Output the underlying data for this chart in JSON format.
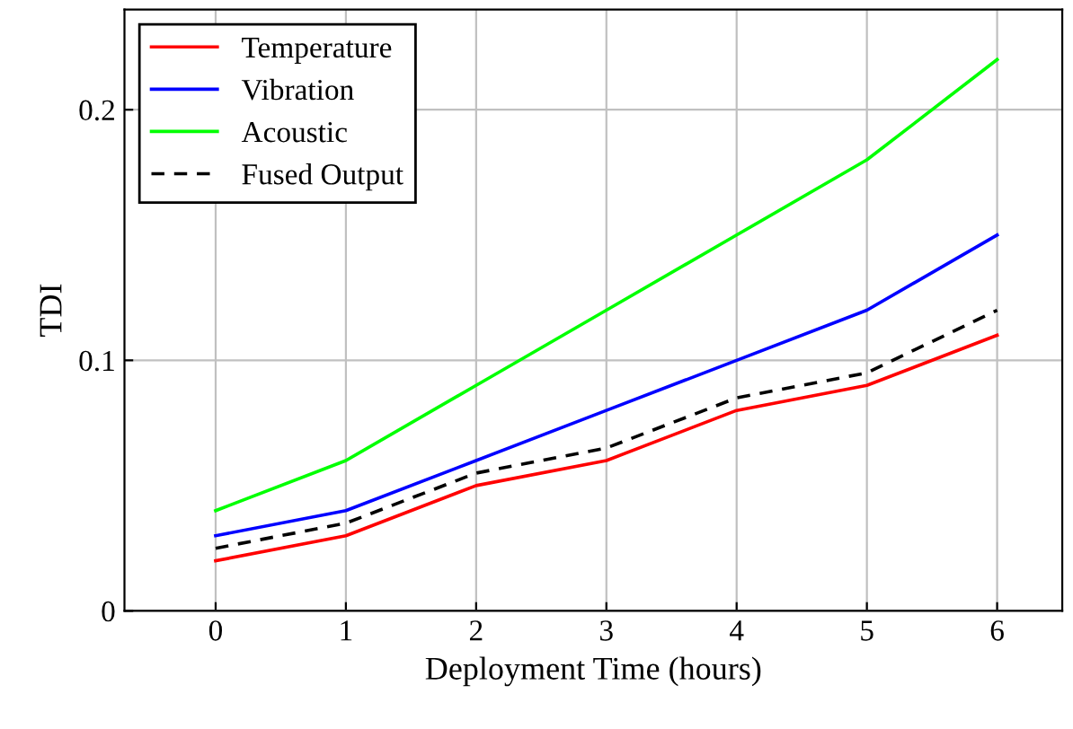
{
  "chart_data": {
    "type": "line",
    "xlabel": "Deployment Time (hours)",
    "ylabel": "TDI",
    "x": [
      0,
      1,
      2,
      3,
      4,
      5,
      6
    ],
    "series": [
      {
        "name": "Temperature",
        "color": "#ff0000",
        "values": [
          0.02,
          0.03,
          0.05,
          0.06,
          0.08,
          0.09,
          0.11
        ]
      },
      {
        "name": "Vibration",
        "color": "#0000ff",
        "values": [
          0.03,
          0.04,
          0.06,
          0.08,
          0.1,
          0.12,
          0.15
        ]
      },
      {
        "name": "Acoustic",
        "color": "#00ff00",
        "values": [
          0.04,
          0.06,
          0.09,
          0.12,
          0.15,
          0.18,
          0.22
        ]
      },
      {
        "name": "Fused Output",
        "color": "#000000",
        "line_style": "dashed",
        "values": [
          0.025,
          0.035,
          0.055,
          0.065,
          0.085,
          0.095,
          0.12
        ]
      }
    ],
    "xlim": [
      -0.7,
      6.5
    ],
    "ylim": [
      0,
      0.24
    ],
    "xticks": [
      0,
      1,
      2,
      3,
      4,
      5,
      6
    ],
    "yticks": [
      0,
      0.1,
      0.2
    ],
    "grid": true,
    "legend": "top left"
  }
}
